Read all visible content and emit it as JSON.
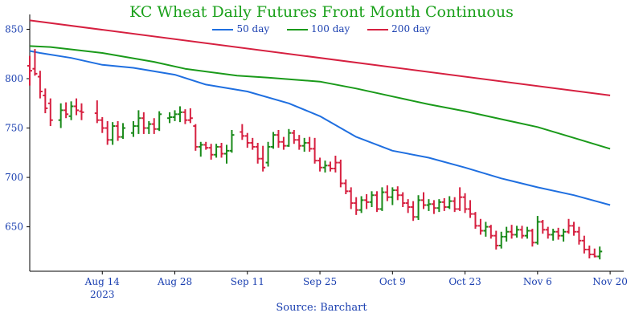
{
  "chart_data": {
    "type": "ohlc-line",
    "title": "KC Wheat Daily Futures Front Month Continuous",
    "source": "Source: Barchart",
    "ylim": [
      605,
      865
    ],
    "yticks": [
      650,
      700,
      750,
      800,
      850
    ],
    "xlabels": [
      "Aug 14",
      "Aug 28",
      "Sep 11",
      "Sep 25",
      "Oct 9",
      "Oct 23",
      "Nov 6",
      "Nov 20"
    ],
    "xlabel_positions_days": [
      14,
      28,
      42,
      56,
      70,
      84,
      98,
      112
    ],
    "year_label": "2023",
    "year_label_under": "Aug 14",
    "x_range_days": [
      0,
      114
    ],
    "series": [
      {
        "name": "50 day",
        "color": "#1f6fe0",
        "x": [
          0,
          2,
          8,
          14,
          20,
          28,
          34,
          42,
          50,
          56,
          63,
          70,
          77,
          84,
          91,
          98,
          105,
          112
        ],
        "y": [
          828,
          826,
          821,
          814,
          811,
          804,
          794,
          787,
          775,
          762,
          741,
          727,
          720,
          710,
          699,
          690,
          682,
          672
        ]
      },
      {
        "name": "100 day",
        "color": "#1a9a1a",
        "x": [
          0,
          4,
          14,
          24,
          30,
          40,
          46,
          56,
          63,
          70,
          77,
          84,
          91,
          98,
          105,
          112
        ],
        "y": [
          833,
          832,
          826,
          817,
          810,
          803,
          801,
          797,
          790,
          782,
          774,
          767,
          759,
          751,
          740,
          729
        ]
      },
      {
        "name": "200 day",
        "color": "#d62040",
        "x": [
          0,
          112
        ],
        "y": [
          859,
          783
        ]
      }
    ],
    "bars": [
      {
        "x": 0,
        "o": 813,
        "h": 823,
        "l": 793,
        "c": 808,
        "color": "red"
      },
      {
        "x": 1,
        "o": 810,
        "h": 830,
        "l": 803,
        "c": 805,
        "color": "red"
      },
      {
        "x": 2,
        "o": 802,
        "h": 808,
        "l": 780,
        "c": 787,
        "color": "red"
      },
      {
        "x": 3,
        "o": 783,
        "h": 790,
        "l": 765,
        "c": 770,
        "color": "red"
      },
      {
        "x": 4,
        "o": 775,
        "h": 780,
        "l": 752,
        "c": 758,
        "color": "red"
      },
      {
        "x": 6,
        "o": 758,
        "h": 775,
        "l": 750,
        "c": 768,
        "color": "green"
      },
      {
        "x": 7,
        "o": 768,
        "h": 776,
        "l": 760,
        "c": 764,
        "color": "red"
      },
      {
        "x": 8,
        "o": 762,
        "h": 777,
        "l": 758,
        "c": 772,
        "color": "green"
      },
      {
        "x": 9,
        "o": 772,
        "h": 780,
        "l": 763,
        "c": 768,
        "color": "red"
      },
      {
        "x": 10,
        "o": 767,
        "h": 775,
        "l": 758,
        "c": 766,
        "color": "red"
      },
      {
        "x": 13,
        "o": 765,
        "h": 778,
        "l": 755,
        "c": 758,
        "color": "red"
      },
      {
        "x": 14,
        "o": 758,
        "h": 761,
        "l": 745,
        "c": 750,
        "color": "red"
      },
      {
        "x": 15,
        "o": 750,
        "h": 757,
        "l": 733,
        "c": 738,
        "color": "red"
      },
      {
        "x": 16,
        "o": 738,
        "h": 756,
        "l": 733,
        "c": 752,
        "color": "green"
      },
      {
        "x": 17,
        "o": 752,
        "h": 757,
        "l": 737,
        "c": 741,
        "color": "red"
      },
      {
        "x": 18,
        "o": 741,
        "h": 755,
        "l": 739,
        "c": 750,
        "color": "green"
      },
      {
        "x": 20,
        "o": 745,
        "h": 757,
        "l": 741,
        "c": 752,
        "color": "green"
      },
      {
        "x": 21,
        "o": 752,
        "h": 768,
        "l": 744,
        "c": 760,
        "color": "green"
      },
      {
        "x": 22,
        "o": 760,
        "h": 766,
        "l": 744,
        "c": 750,
        "color": "red"
      },
      {
        "x": 23,
        "o": 750,
        "h": 757,
        "l": 744,
        "c": 754,
        "color": "green"
      },
      {
        "x": 24,
        "o": 754,
        "h": 760,
        "l": 744,
        "c": 749,
        "color": "red"
      },
      {
        "x": 25,
        "o": 749,
        "h": 767,
        "l": 747,
        "c": 764,
        "color": "green"
      },
      {
        "x": 27,
        "o": 760,
        "h": 766,
        "l": 755,
        "c": 761,
        "color": "green"
      },
      {
        "x": 28,
        "o": 761,
        "h": 768,
        "l": 757,
        "c": 764,
        "color": "green"
      },
      {
        "x": 29,
        "o": 764,
        "h": 772,
        "l": 756,
        "c": 766,
        "color": "green"
      },
      {
        "x": 30,
        "o": 766,
        "h": 769,
        "l": 754,
        "c": 758,
        "color": "red"
      },
      {
        "x": 31,
        "o": 758,
        "h": 770,
        "l": 755,
        "c": 760,
        "color": "red"
      },
      {
        "x": 32,
        "o": 752,
        "h": 754,
        "l": 727,
        "c": 731,
        "color": "red"
      },
      {
        "x": 33,
        "o": 731,
        "h": 736,
        "l": 721,
        "c": 733,
        "color": "green"
      },
      {
        "x": 34,
        "o": 733,
        "h": 736,
        "l": 728,
        "c": 730,
        "color": "red"
      },
      {
        "x": 35,
        "o": 730,
        "h": 734,
        "l": 718,
        "c": 723,
        "color": "red"
      },
      {
        "x": 36,
        "o": 723,
        "h": 734,
        "l": 720,
        "c": 731,
        "color": "green"
      },
      {
        "x": 37,
        "o": 731,
        "h": 735,
        "l": 720,
        "c": 724,
        "color": "red"
      },
      {
        "x": 38,
        "o": 724,
        "h": 733,
        "l": 714,
        "c": 727,
        "color": "green"
      },
      {
        "x": 39,
        "o": 727,
        "h": 748,
        "l": 725,
        "c": 743,
        "color": "green"
      },
      {
        "x": 41,
        "o": 746,
        "h": 754,
        "l": 738,
        "c": 742,
        "color": "red"
      },
      {
        "x": 42,
        "o": 742,
        "h": 745,
        "l": 730,
        "c": 735,
        "color": "red"
      },
      {
        "x": 43,
        "o": 735,
        "h": 740,
        "l": 728,
        "c": 731,
        "color": "red"
      },
      {
        "x": 44,
        "o": 731,
        "h": 735,
        "l": 714,
        "c": 719,
        "color": "red"
      },
      {
        "x": 45,
        "o": 719,
        "h": 732,
        "l": 706,
        "c": 710,
        "color": "red"
      },
      {
        "x": 46,
        "o": 715,
        "h": 736,
        "l": 711,
        "c": 731,
        "color": "green"
      },
      {
        "x": 47,
        "o": 731,
        "h": 746,
        "l": 729,
        "c": 743,
        "color": "green"
      },
      {
        "x": 48,
        "o": 743,
        "h": 748,
        "l": 730,
        "c": 736,
        "color": "red"
      },
      {
        "x": 49,
        "o": 736,
        "h": 741,
        "l": 728,
        "c": 732,
        "color": "red"
      },
      {
        "x": 50,
        "o": 732,
        "h": 749,
        "l": 731,
        "c": 745,
        "color": "green"
      },
      {
        "x": 51,
        "o": 745,
        "h": 748,
        "l": 734,
        "c": 738,
        "color": "red"
      },
      {
        "x": 52,
        "o": 738,
        "h": 743,
        "l": 728,
        "c": 732,
        "color": "red"
      },
      {
        "x": 53,
        "o": 732,
        "h": 740,
        "l": 726,
        "c": 735,
        "color": "green"
      },
      {
        "x": 54,
        "o": 735,
        "h": 741,
        "l": 726,
        "c": 729,
        "color": "red"
      },
      {
        "x": 55,
        "o": 729,
        "h": 740,
        "l": 714,
        "c": 717,
        "color": "red"
      },
      {
        "x": 56,
        "o": 717,
        "h": 720,
        "l": 706,
        "c": 710,
        "color": "red"
      },
      {
        "x": 57,
        "o": 710,
        "h": 717,
        "l": 705,
        "c": 712,
        "color": "green"
      },
      {
        "x": 58,
        "o": 712,
        "h": 716,
        "l": 706,
        "c": 709,
        "color": "red"
      },
      {
        "x": 59,
        "o": 709,
        "h": 722,
        "l": 705,
        "c": 715,
        "color": "red"
      },
      {
        "x": 60,
        "o": 715,
        "h": 718,
        "l": 690,
        "c": 694,
        "color": "red"
      },
      {
        "x": 61,
        "o": 694,
        "h": 698,
        "l": 683,
        "c": 686,
        "color": "red"
      },
      {
        "x": 62,
        "o": 686,
        "h": 690,
        "l": 668,
        "c": 674,
        "color": "red"
      },
      {
        "x": 63,
        "o": 674,
        "h": 680,
        "l": 662,
        "c": 667,
        "color": "red"
      },
      {
        "x": 64,
        "o": 667,
        "h": 681,
        "l": 664,
        "c": 677,
        "color": "green"
      },
      {
        "x": 65,
        "o": 677,
        "h": 683,
        "l": 668,
        "c": 675,
        "color": "red"
      },
      {
        "x": 66,
        "o": 675,
        "h": 686,
        "l": 670,
        "c": 682,
        "color": "green"
      },
      {
        "x": 67,
        "o": 682,
        "h": 686,
        "l": 665,
        "c": 668,
        "color": "red"
      },
      {
        "x": 68,
        "o": 668,
        "h": 690,
        "l": 666,
        "c": 685,
        "color": "green"
      },
      {
        "x": 69,
        "o": 685,
        "h": 692,
        "l": 676,
        "c": 680,
        "color": "red"
      },
      {
        "x": 70,
        "o": 680,
        "h": 690,
        "l": 672,
        "c": 687,
        "color": "green"
      },
      {
        "x": 71,
        "o": 687,
        "h": 691,
        "l": 677,
        "c": 682,
        "color": "red"
      },
      {
        "x": 72,
        "o": 682,
        "h": 685,
        "l": 670,
        "c": 674,
        "color": "red"
      },
      {
        "x": 73,
        "o": 674,
        "h": 678,
        "l": 664,
        "c": 670,
        "color": "red"
      },
      {
        "x": 74,
        "o": 670,
        "h": 676,
        "l": 656,
        "c": 660,
        "color": "red"
      },
      {
        "x": 75,
        "o": 660,
        "h": 682,
        "l": 657,
        "c": 677,
        "color": "green"
      },
      {
        "x": 76,
        "o": 677,
        "h": 685,
        "l": 668,
        "c": 672,
        "color": "red"
      },
      {
        "x": 77,
        "o": 672,
        "h": 678,
        "l": 666,
        "c": 673,
        "color": "green"
      },
      {
        "x": 78,
        "o": 673,
        "h": 677,
        "l": 663,
        "c": 669,
        "color": "red"
      },
      {
        "x": 79,
        "o": 669,
        "h": 678,
        "l": 665,
        "c": 675,
        "color": "green"
      },
      {
        "x": 80,
        "o": 675,
        "h": 679,
        "l": 666,
        "c": 670,
        "color": "red"
      },
      {
        "x": 81,
        "o": 670,
        "h": 681,
        "l": 668,
        "c": 676,
        "color": "green"
      },
      {
        "x": 82,
        "o": 676,
        "h": 680,
        "l": 665,
        "c": 668,
        "color": "red"
      },
      {
        "x": 83,
        "o": 668,
        "h": 690,
        "l": 666,
        "c": 680,
        "color": "red"
      },
      {
        "x": 84,
        "o": 680,
        "h": 684,
        "l": 664,
        "c": 668,
        "color": "red"
      },
      {
        "x": 85,
        "o": 668,
        "h": 677,
        "l": 659,
        "c": 663,
        "color": "red"
      },
      {
        "x": 86,
        "o": 663,
        "h": 665,
        "l": 648,
        "c": 651,
        "color": "red"
      },
      {
        "x": 87,
        "o": 651,
        "h": 658,
        "l": 642,
        "c": 646,
        "color": "red"
      },
      {
        "x": 88,
        "o": 646,
        "h": 655,
        "l": 640,
        "c": 650,
        "color": "green"
      },
      {
        "x": 89,
        "o": 650,
        "h": 652,
        "l": 638,
        "c": 641,
        "color": "red"
      },
      {
        "x": 90,
        "o": 641,
        "h": 646,
        "l": 627,
        "c": 631,
        "color": "red"
      },
      {
        "x": 91,
        "o": 631,
        "h": 645,
        "l": 628,
        "c": 640,
        "color": "green"
      },
      {
        "x": 92,
        "o": 640,
        "h": 650,
        "l": 635,
        "c": 645,
        "color": "green"
      },
      {
        "x": 93,
        "o": 645,
        "h": 652,
        "l": 638,
        "c": 642,
        "color": "red"
      },
      {
        "x": 94,
        "o": 642,
        "h": 651,
        "l": 639,
        "c": 647,
        "color": "green"
      },
      {
        "x": 95,
        "o": 647,
        "h": 651,
        "l": 638,
        "c": 641,
        "color": "red"
      },
      {
        "x": 96,
        "o": 641,
        "h": 650,
        "l": 638,
        "c": 646,
        "color": "green"
      },
      {
        "x": 97,
        "o": 646,
        "h": 648,
        "l": 630,
        "c": 634,
        "color": "red"
      },
      {
        "x": 98,
        "o": 634,
        "h": 661,
        "l": 632,
        "c": 655,
        "color": "green"
      },
      {
        "x": 99,
        "o": 655,
        "h": 657,
        "l": 643,
        "c": 647,
        "color": "red"
      },
      {
        "x": 100,
        "o": 647,
        "h": 650,
        "l": 638,
        "c": 642,
        "color": "red"
      },
      {
        "x": 101,
        "o": 642,
        "h": 648,
        "l": 636,
        "c": 645,
        "color": "green"
      },
      {
        "x": 102,
        "o": 645,
        "h": 649,
        "l": 637,
        "c": 641,
        "color": "red"
      },
      {
        "x": 103,
        "o": 641,
        "h": 648,
        "l": 635,
        "c": 645,
        "color": "green"
      },
      {
        "x": 104,
        "o": 645,
        "h": 658,
        "l": 643,
        "c": 651,
        "color": "red"
      },
      {
        "x": 105,
        "o": 651,
        "h": 655,
        "l": 641,
        "c": 645,
        "color": "red"
      },
      {
        "x": 106,
        "o": 645,
        "h": 650,
        "l": 632,
        "c": 636,
        "color": "red"
      },
      {
        "x": 107,
        "o": 636,
        "h": 641,
        "l": 623,
        "c": 627,
        "color": "red"
      },
      {
        "x": 108,
        "o": 627,
        "h": 631,
        "l": 618,
        "c": 622,
        "color": "red"
      },
      {
        "x": 109,
        "o": 622,
        "h": 628,
        "l": 619,
        "c": 620,
        "color": "red"
      },
      {
        "x": 110,
        "o": 620,
        "h": 630,
        "l": 617,
        "c": 625,
        "color": "green"
      }
    ],
    "colors": {
      "up": "#1a8a1a",
      "down": "#d62040",
      "axis": "#000000",
      "text": "#1a3fb0",
      "title": "#1aa01a"
    }
  }
}
